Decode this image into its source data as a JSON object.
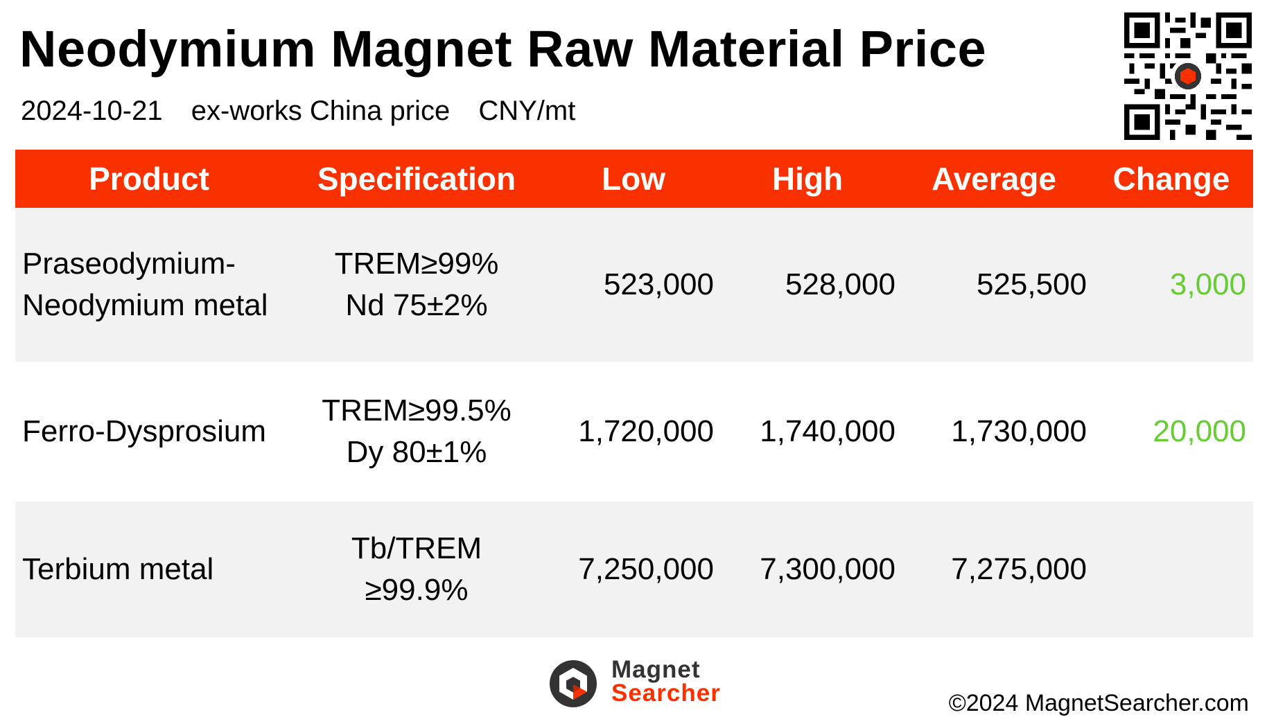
{
  "header": {
    "title": "Neodymium Magnet Raw Material Price",
    "date": "2024-10-21",
    "basis": "ex-works China price",
    "unit": "CNY/mt"
  },
  "table": {
    "columns": [
      "Product",
      "Specification",
      "Low",
      "High",
      "Average",
      "Change"
    ],
    "rows": [
      {
        "product_line1": "Praseodymium-",
        "product_line2": "Neodymium metal",
        "spec_line1": "TREM≥99%",
        "spec_line2": "Nd 75±2%",
        "low": "523,000",
        "high": "528,000",
        "average": "525,500",
        "change": "3,000"
      },
      {
        "product_line1": "Ferro-Dysprosium",
        "product_line2": "",
        "spec_line1": "TREM≥99.5%",
        "spec_line2": "Dy 80±1%",
        "low": "1,720,000",
        "high": "1,740,000",
        "average": "1,730,000",
        "change": "20,000"
      },
      {
        "product_line1": "Terbium metal",
        "product_line2": "",
        "spec_line1": "Tb/TREM",
        "spec_line2": "≥99.9%",
        "low": "7,250,000",
        "high": "7,300,000",
        "average": "7,275,000",
        "change": ""
      }
    ]
  },
  "footer": {
    "logo_line1": "Magnet",
    "logo_line2": "Searcher",
    "copyright": "©2024 MagnetSearcher.com"
  },
  "colors": {
    "header_bg": "#f93101",
    "change_positive": "#66cc33",
    "row_shade": "#f2f2f2",
    "logo_dark": "#333333"
  },
  "icons": {
    "qr": "qr-code-icon",
    "logo": "magnet-searcher-logo-icon"
  }
}
